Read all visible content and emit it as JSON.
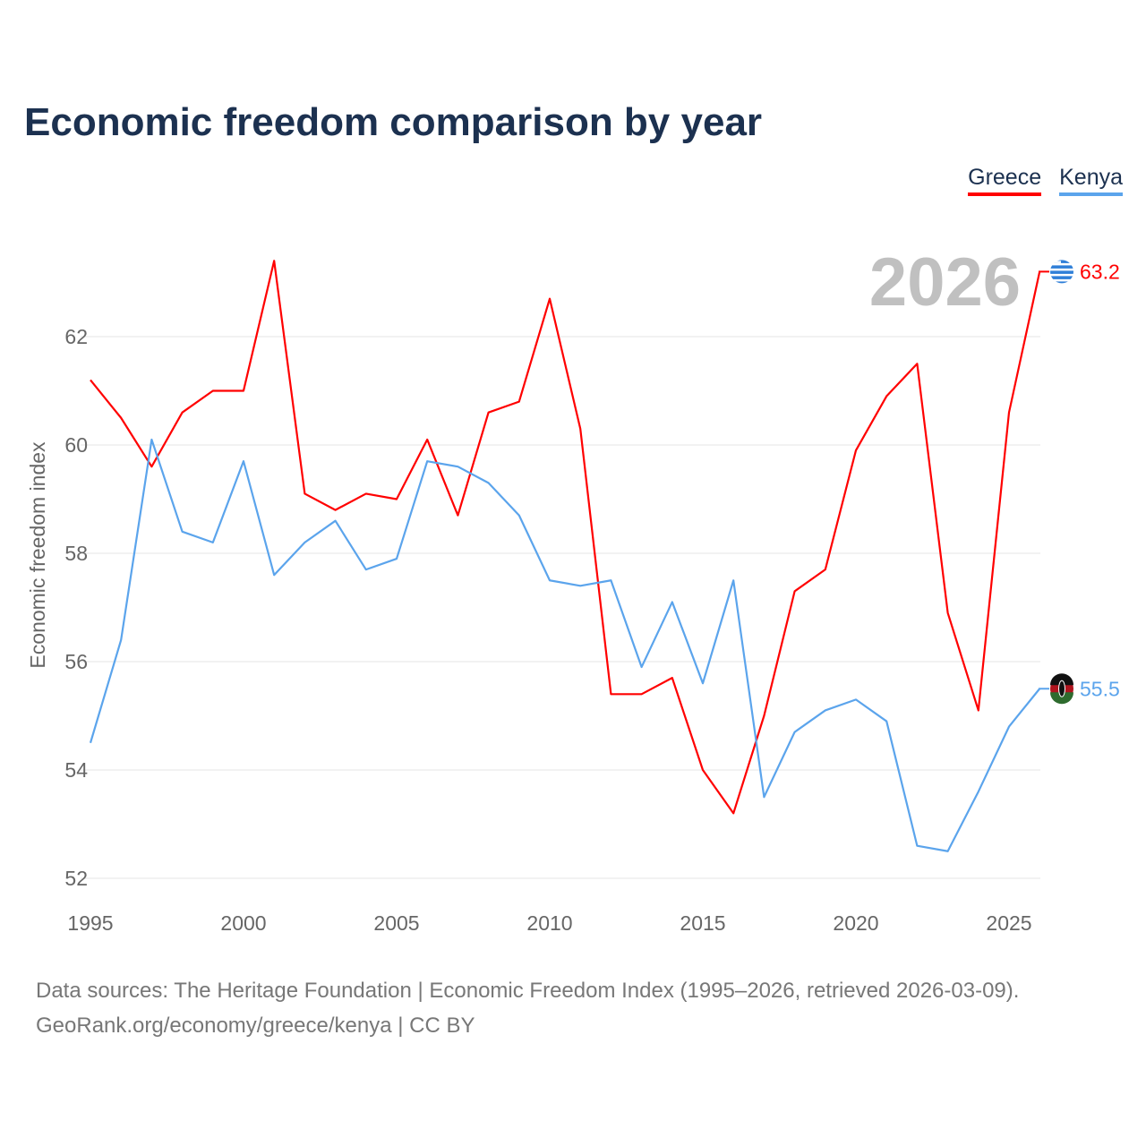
{
  "title": "Economic freedom comparison by year",
  "year_label": "2026",
  "sources": [
    "Data sources: The Heritage Foundation | Economic Freedom Index (1995–2026, retrieved 2026-03-09).",
    "GeoRank.org/economy/greece/kenya | CC BY"
  ],
  "chart_data": {
    "type": "line",
    "title": "Economic freedom comparison by year",
    "xlabel": "",
    "ylabel": "Economic freedom index",
    "x": [
      1995,
      1996,
      1997,
      1998,
      1999,
      2000,
      2001,
      2002,
      2003,
      2004,
      2005,
      2006,
      2007,
      2008,
      2009,
      2010,
      2011,
      2012,
      2013,
      2014,
      2015,
      2016,
      2017,
      2018,
      2019,
      2020,
      2021,
      2022,
      2023,
      2024,
      2025,
      2026
    ],
    "xticks": [
      1995,
      2000,
      2005,
      2010,
      2015,
      2020,
      2025
    ],
    "yticks": [
      52,
      54,
      56,
      58,
      60,
      62
    ],
    "ylim": [
      52,
      62
    ],
    "legend_position": "top-right",
    "grid": true,
    "series": [
      {
        "name": "Greece",
        "color": "#ff0000",
        "end_label": "63.2",
        "flag_icon": "greece-flag-icon",
        "values": [
          61.2,
          60.5,
          59.6,
          60.6,
          61.0,
          61.0,
          63.4,
          59.1,
          58.8,
          59.1,
          59.0,
          60.1,
          58.7,
          60.6,
          60.8,
          62.7,
          60.3,
          55.4,
          55.4,
          55.7,
          54.0,
          53.2,
          55.0,
          57.3,
          57.7,
          59.9,
          60.9,
          61.5,
          56.9,
          55.1,
          60.6,
          63.2
        ]
      },
      {
        "name": "Kenya",
        "color": "#5ba4ec",
        "end_label": "55.5",
        "flag_icon": "kenya-flag-icon",
        "values": [
          54.5,
          56.4,
          60.1,
          58.4,
          58.2,
          59.7,
          57.6,
          58.2,
          58.6,
          57.7,
          57.9,
          59.7,
          59.6,
          59.3,
          58.7,
          57.5,
          57.4,
          57.5,
          55.9,
          57.1,
          55.6,
          57.5,
          53.5,
          54.7,
          55.1,
          55.3,
          54.9,
          52.6,
          52.5,
          53.6,
          54.8,
          55.5
        ]
      }
    ]
  }
}
